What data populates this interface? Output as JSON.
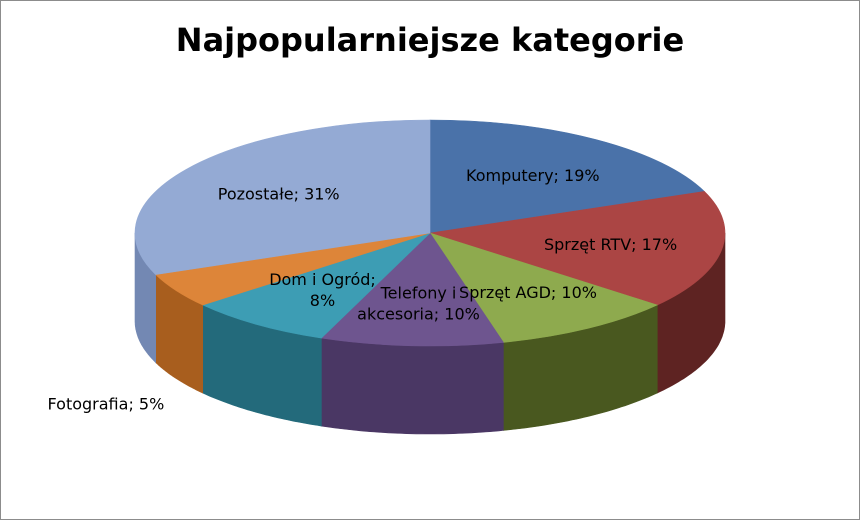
{
  "chart_data": {
    "type": "pie",
    "title": "Najpopularniejsze kategorie",
    "three_d": true,
    "slices": [
      {
        "label": "Komputery",
        "value": 19,
        "text": [
          "Komputery; 19%"
        ],
        "color": "#4a72a9",
        "side": "#2f4c73"
      },
      {
        "label": "Sprzęt RTV",
        "value": 17,
        "text": [
          "Sprzęt RTV; 17%"
        ],
        "color": "#ab4544",
        "side": "#5e2322"
      },
      {
        "label": "Sprzęt AGD",
        "value": 10,
        "text": [
          "Sprzęt AGD; 10%"
        ],
        "color": "#8eaa4e",
        "side": "#49581f"
      },
      {
        "label": "Telefony i akcesoria",
        "value": 10,
        "text": [
          "Telefony i",
          "akcesoria; 10%"
        ],
        "color": "#6e558f",
        "side": "#4a3764"
      },
      {
        "label": "Dom i Ogród",
        "value": 8,
        "text": [
          "Dom i Ogród;",
          "8%"
        ],
        "color": "#3d9db4",
        "side": "#236a7b"
      },
      {
        "label": "Fotografia",
        "value": 5,
        "text": [
          "Fotografia; 5%"
        ],
        "color": "#dd8539",
        "side": "#a85e1e"
      },
      {
        "label": "Pozostałe",
        "value": 31,
        "text": [
          "Pozostałe; 31%"
        ],
        "color": "#94aad4",
        "side": "#7388b3"
      }
    ]
  }
}
